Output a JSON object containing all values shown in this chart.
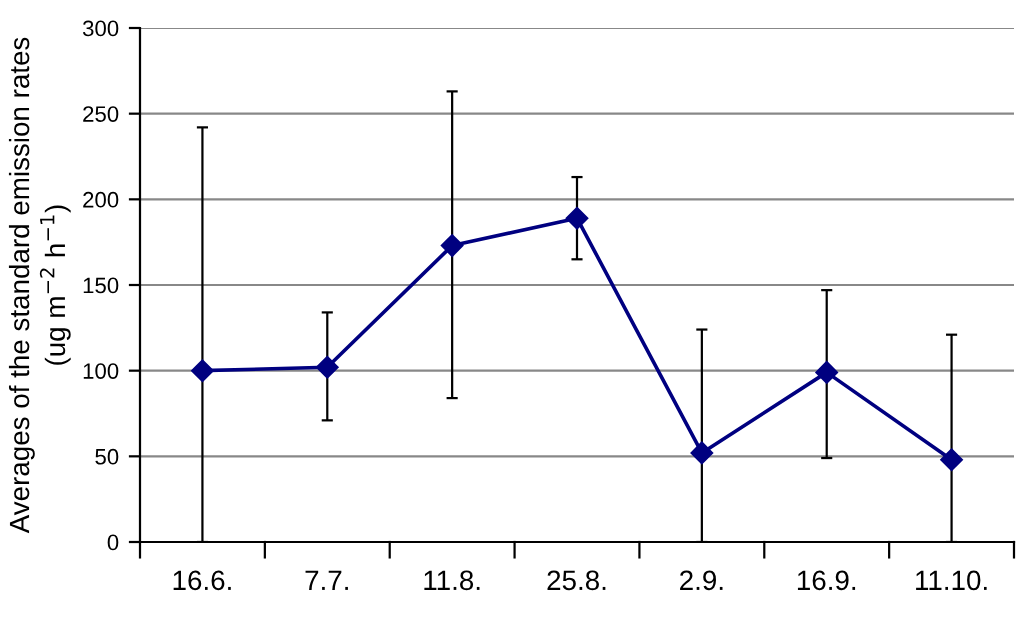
{
  "chart_data": {
    "type": "line",
    "ylabel": "Averages of the standard emission rates\n(ug m$^{−2}$ h$^{−1}$)",
    "categories": [
      "16.6.",
      "7.7.",
      "11.8.",
      "25.8.",
      "2.9.",
      "16.9.",
      "11.10."
    ],
    "values": [
      100,
      102,
      173,
      189,
      52,
      99,
      48
    ],
    "errors": [
      [
        0,
        242
      ],
      [
        71,
        134
      ],
      [
        84,
        263
      ],
      [
        165,
        213
      ],
      [
        0,
        124
      ],
      [
        49,
        147
      ],
      [
        0,
        121
      ]
    ],
    "color": "#000080",
    "marker": "diamond",
    "line_style": "solid",
    "ylim": [
      0,
      300
    ],
    "yticks": [
      0,
      50,
      100,
      150,
      200,
      250,
      300
    ],
    "grid": "y",
    "legend": false
  }
}
